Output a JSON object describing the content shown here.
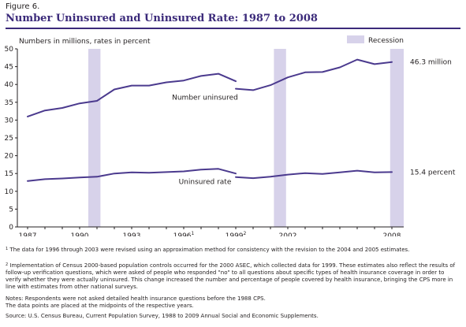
{
  "figure": {
    "label": "Figure 6.",
    "title": "Number Uninsured and Uninsured Rate: 1987 to 2008"
  },
  "chart_data": {
    "type": "line",
    "title": "Number Uninsured and Uninsured Rate: 1987 to 2008",
    "ylabel": "Numbers in millions, rates in percent",
    "xlabel": "",
    "ylim": [
      0,
      50
    ],
    "yticks": [
      0,
      5,
      10,
      15,
      20,
      25,
      30,
      35,
      40,
      45,
      50
    ],
    "xlim": [
      1987,
      2008
    ],
    "xticks": [
      {
        "x": 1987,
        "label": "1987",
        "sup": ""
      },
      {
        "x": 1990,
        "label": "1990",
        "sup": ""
      },
      {
        "x": 1993,
        "label": "1993",
        "sup": ""
      },
      {
        "x": 1996,
        "label": "1996",
        "sup": "1"
      },
      {
        "x": 1999,
        "label": "1999",
        "sup": "2"
      },
      {
        "x": 2002,
        "label": "2002",
        "sup": ""
      },
      {
        "x": 2008,
        "label": "2008",
        "sup": ""
      }
    ],
    "grid": false,
    "legend": {
      "label": "Recession",
      "placement": "top-right"
    },
    "recessions": [
      [
        1990.5,
        1991.2
      ],
      [
        2001.2,
        2001.9
      ],
      [
        2007.9,
        2009
      ]
    ],
    "series": [
      {
        "name": "Number uninsured",
        "color": "#4b3a8e",
        "end_label": "46.3 million",
        "segments": [
          {
            "x": [
              1987,
              1988,
              1989,
              1990,
              1991,
              1992,
              1993,
              1994,
              1995,
              1996,
              1997,
              1998,
              1999
            ],
            "y": [
              31.0,
              32.7,
              33.4,
              34.7,
              35.4,
              38.6,
              39.7,
              39.7,
              40.6,
              41.1,
              42.4,
              43.0,
              40.9
            ]
          },
          {
            "x": [
              1999,
              2000,
              2001,
              2002,
              2003,
              2004,
              2005,
              2006,
              2007,
              2008
            ],
            "y": [
              38.8,
              38.4,
              39.8,
              42.0,
              43.4,
              43.5,
              44.8,
              47.0,
              45.7,
              46.3
            ]
          }
        ]
      },
      {
        "name": "Uninsured rate",
        "color": "#4b3a8e",
        "end_label": "15.4 percent",
        "segments": [
          {
            "x": [
              1987,
              1988,
              1989,
              1990,
              1991,
              1992,
              1993,
              1994,
              1995,
              1996,
              1997,
              1998,
              1999
            ],
            "y": [
              12.9,
              13.4,
              13.6,
              13.9,
              14.1,
              15.0,
              15.3,
              15.2,
              15.4,
              15.6,
              16.1,
              16.3,
              15.0
            ]
          },
          {
            "x": [
              1999,
              2000,
              2001,
              2002,
              2003,
              2004,
              2005,
              2006,
              2007,
              2008
            ],
            "y": [
              14.0,
              13.7,
              14.1,
              14.7,
              15.1,
              14.9,
              15.3,
              15.8,
              15.3,
              15.4
            ]
          }
        ]
      }
    ]
  },
  "footnotes": {
    "fn1_mark": "1",
    "fn1": "The data for 1996 through 2003 were revised using an approximation method for consistency with the revision to the 2004 and 2005 estimates.",
    "fn2_mark": "2",
    "fn2": "Implementation of Census 2000-based population controls occurred for the 2000 ASEC, which collected data for 1999.  These estimates also reflect the results of follow-up verification questions, which were asked of people who responded \"no\" to all questions about specific types of health insurance coverage in order to verify whether they were actually uninsured.  This change increased the number and percentage of people covered by health insurance, bringing the CPS more in line with estimates from other national surveys.",
    "notes1": "Notes: Respondents were not asked detailed health insurance questions before the 1988 CPS.",
    "notes2": "The data points are placed at the midpoints of the respective years.",
    "source": "Source: U.S. Census Bureau, Current Population Survey, 1988 to 2009 Annual Social and Economic Supplements."
  }
}
